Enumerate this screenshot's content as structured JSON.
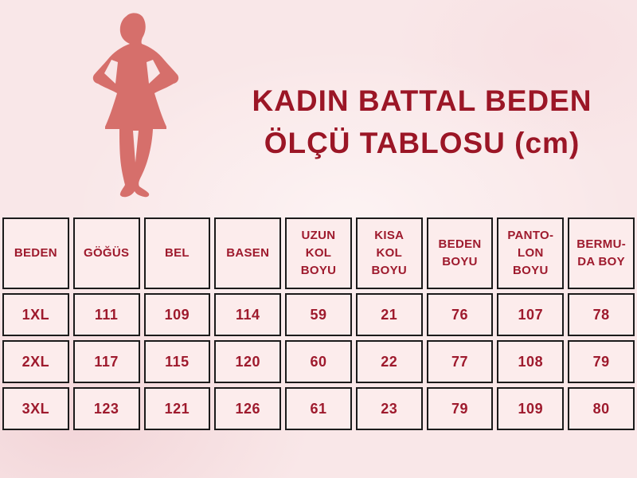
{
  "title": {
    "line1": "KADIN BATTAL BEDEN",
    "line2": "ÖLÇÜ TABLOSU (cm)"
  },
  "figure": {
    "description": "plus-size woman silhouette",
    "color": "#d66f6b"
  },
  "colors": {
    "page_background": "#f9e7e8",
    "title_text": "#9b1626",
    "cell_text": "#9e1a2d",
    "cell_border": "#1b1b1b",
    "cell_background": "#fcecec",
    "silhouette": "#d66f6b"
  },
  "size_table": {
    "unit": "cm",
    "columns": [
      "BEDEN",
      "GÖĞÜS",
      "BEL",
      "BASEN",
      "UZUN\nKOL\nBOYU",
      "KISA\nKOL\nBOYU",
      "BEDEN\nBOYU",
      "PANTO-\nLON\nBOYU",
      "BERMU-\nDA BOY"
    ],
    "rows": [
      {
        "label": "1XL",
        "values": [
          "111",
          "109",
          "114",
          "59",
          "21",
          "76",
          "107",
          "78"
        ]
      },
      {
        "label": "2XL",
        "values": [
          "117",
          "115",
          "120",
          "60",
          "22",
          "77",
          "108",
          "79"
        ]
      },
      {
        "label": "3XL",
        "values": [
          "123",
          "121",
          "126",
          "61",
          "23",
          "79",
          "109",
          "80"
        ]
      }
    ]
  },
  "chart_data": {
    "type": "table",
    "title": "KADIN BATTAL BEDEN ÖLÇÜ TABLOSU (cm)",
    "columns": [
      "BEDEN",
      "GÖĞÜS",
      "BEL",
      "BASEN",
      "UZUN KOL BOYU",
      "KISA KOL BOYU",
      "BEDEN BOYU",
      "PANTOLON BOYU",
      "BERMUDA BOY"
    ],
    "rows": [
      [
        "1XL",
        111,
        109,
        114,
        59,
        21,
        76,
        107,
        78
      ],
      [
        "2XL",
        117,
        115,
        120,
        60,
        22,
        77,
        108,
        79
      ],
      [
        "3XL",
        123,
        121,
        126,
        61,
        23,
        79,
        109,
        80
      ]
    ]
  }
}
